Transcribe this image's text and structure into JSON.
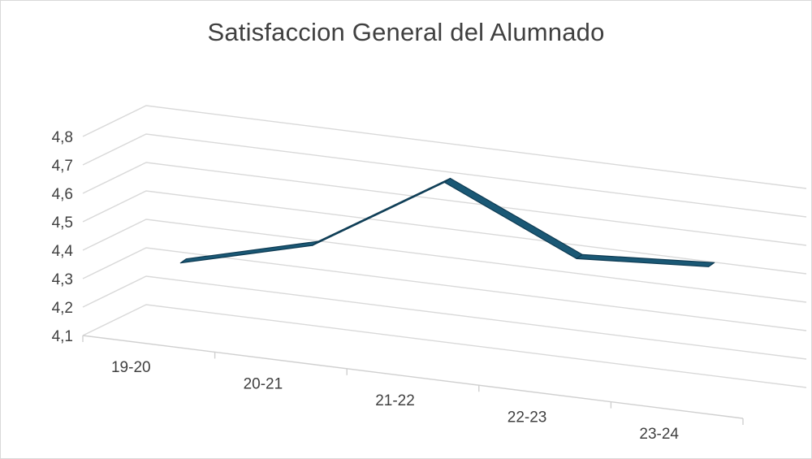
{
  "chart_data": {
    "type": "line",
    "title": "Satisfaccion General del Alumnado",
    "categories": [
      "19-20",
      "20-21",
      "21-22",
      "22-23",
      "23-24"
    ],
    "series": [
      {
        "values": [
          4.33,
          4.45,
          4.73,
          4.52,
          4.55
        ]
      }
    ],
    "y_ticks": [
      "4,1",
      "4,2",
      "4,3",
      "4,4",
      "4,5",
      "4,6",
      "4,7",
      "4,8"
    ],
    "ylim": [
      4.1,
      4.8
    ],
    "grid": true,
    "style": "3d-line",
    "line_color": "#1a5875",
    "line_dark": "#0d3a52"
  }
}
